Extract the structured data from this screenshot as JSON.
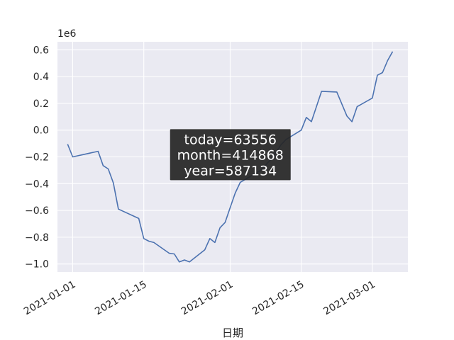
{
  "chart_data": {
    "type": "line",
    "xlabel": "日期",
    "y_offset_label": "1e6",
    "y_scale": 1000000,
    "ylim": [
      -1.06,
      0.66
    ],
    "xlim": [
      "2020-12-29",
      "2021-03-08"
    ],
    "y_ticks": [
      {
        "value": 0.6,
        "label": "0.6"
      },
      {
        "value": 0.4,
        "label": "0.4"
      },
      {
        "value": 0.2,
        "label": "0.2"
      },
      {
        "value": 0.0,
        "label": "0.0"
      },
      {
        "value": -0.2,
        "label": "−0.2"
      },
      {
        "value": -0.4,
        "label": "−0.4"
      },
      {
        "value": -0.6,
        "label": "−0.6"
      },
      {
        "value": -0.8,
        "label": "−0.8"
      },
      {
        "value": -1.0,
        "label": "−1.0"
      }
    ],
    "x_ticks": [
      {
        "date": "2021-01-01",
        "label": "2021-01-01"
      },
      {
        "date": "2021-01-15",
        "label": "2021-01-15"
      },
      {
        "date": "2021-02-01",
        "label": "2021-02-01"
      },
      {
        "date": "2021-02-15",
        "label": "2021-02-15"
      },
      {
        "date": "2021-03-01",
        "label": "2021-03-01"
      }
    ],
    "grid": true,
    "line_color": "#4c72b0",
    "background_color": "#eaeaf2",
    "points": [
      {
        "x": "2020-12-31",
        "y": -0.105
      },
      {
        "x": "2021-01-01",
        "y": -0.2
      },
      {
        "x": "2021-01-06",
        "y": -0.158
      },
      {
        "x": "2021-01-07",
        "y": -0.265
      },
      {
        "x": "2021-01-08",
        "y": -0.29
      },
      {
        "x": "2021-01-09",
        "y": -0.395
      },
      {
        "x": "2021-01-10",
        "y": -0.59
      },
      {
        "x": "2021-01-14",
        "y": -0.66
      },
      {
        "x": "2021-01-15",
        "y": -0.81
      },
      {
        "x": "2021-01-16",
        "y": -0.83
      },
      {
        "x": "2021-01-17",
        "y": -0.84
      },
      {
        "x": "2021-01-20",
        "y": -0.92
      },
      {
        "x": "2021-01-21",
        "y": -0.925
      },
      {
        "x": "2021-01-22",
        "y": -0.985
      },
      {
        "x": "2021-01-23",
        "y": -0.97
      },
      {
        "x": "2021-01-24",
        "y": -0.985
      },
      {
        "x": "2021-01-27",
        "y": -0.895
      },
      {
        "x": "2021-01-28",
        "y": -0.81
      },
      {
        "x": "2021-01-29",
        "y": -0.84
      },
      {
        "x": "2021-01-30",
        "y": -0.73
      },
      {
        "x": "2021-01-31",
        "y": -0.69
      },
      {
        "x": "2021-02-01",
        "y": -0.58
      },
      {
        "x": "2021-02-02",
        "y": -0.47
      },
      {
        "x": "2021-02-03",
        "y": -0.39
      },
      {
        "x": "2021-02-07",
        "y": -0.3
      },
      {
        "x": "2021-02-08",
        "y": -0.26
      },
      {
        "x": "2021-02-09",
        "y": -0.22
      },
      {
        "x": "2021-02-10",
        "y": -0.17
      },
      {
        "x": "2021-02-11",
        "y": -0.11
      },
      {
        "x": "2021-02-12",
        "y": -0.07
      },
      {
        "x": "2021-02-15",
        "y": 0.0
      },
      {
        "x": "2021-02-16",
        "y": 0.095
      },
      {
        "x": "2021-02-17",
        "y": 0.063
      },
      {
        "x": "2021-02-19",
        "y": 0.29
      },
      {
        "x": "2021-02-22",
        "y": 0.285
      },
      {
        "x": "2021-02-24",
        "y": 0.105
      },
      {
        "x": "2021-02-25",
        "y": 0.063
      },
      {
        "x": "2021-02-26",
        "y": 0.175
      },
      {
        "x": "2021-03-01",
        "y": 0.24
      },
      {
        "x": "2021-03-02",
        "y": 0.41
      },
      {
        "x": "2021-03-03",
        "y": 0.43
      },
      {
        "x": "2021-03-04",
        "y": 0.52
      },
      {
        "x": "2021-03-05",
        "y": 0.587
      }
    ]
  },
  "tooltip": {
    "today": "today=63556",
    "month": "month=414868",
    "year": "year=587134",
    "anchor": {
      "x": "2021-02-03",
      "y": -0.3
    }
  }
}
